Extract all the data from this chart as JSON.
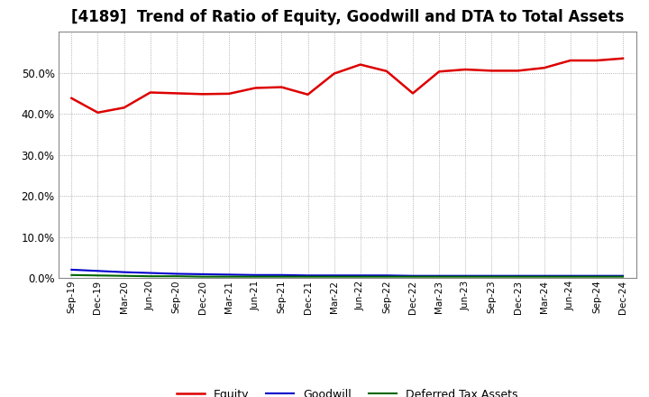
{
  "title": "[4189]  Trend of Ratio of Equity, Goodwill and DTA to Total Assets",
  "x_labels": [
    "Sep-19",
    "Dec-19",
    "Mar-20",
    "Jun-20",
    "Sep-20",
    "Dec-20",
    "Mar-21",
    "Jun-21",
    "Sep-21",
    "Dec-21",
    "Mar-22",
    "Jun-22",
    "Sep-22",
    "Dec-22",
    "Mar-23",
    "Jun-23",
    "Sep-23",
    "Dec-23",
    "Mar-24",
    "Jun-24",
    "Sep-24",
    "Dec-24"
  ],
  "equity": [
    0.438,
    0.403,
    0.415,
    0.452,
    0.45,
    0.448,
    0.449,
    0.463,
    0.465,
    0.447,
    0.498,
    0.52,
    0.504,
    0.45,
    0.503,
    0.508,
    0.505,
    0.505,
    0.512,
    0.53,
    0.53,
    0.535
  ],
  "goodwill": [
    0.02,
    0.017,
    0.014,
    0.012,
    0.01,
    0.009,
    0.008,
    0.007,
    0.007,
    0.006,
    0.006,
    0.006,
    0.006,
    0.005,
    0.005,
    0.005,
    0.005,
    0.005,
    0.005,
    0.005,
    0.005,
    0.005
  ],
  "dta": [
    0.007,
    0.006,
    0.005,
    0.004,
    0.004,
    0.003,
    0.003,
    0.003,
    0.003,
    0.003,
    0.003,
    0.003,
    0.003,
    0.003,
    0.003,
    0.003,
    0.003,
    0.003,
    0.003,
    0.003,
    0.003,
    0.003
  ],
  "equity_color": "#dd0000",
  "goodwill_color": "#0000cc",
  "dta_color": "#006600",
  "ylim": [
    0.0,
    0.6
  ],
  "yticks": [
    0.0,
    0.1,
    0.2,
    0.3,
    0.4,
    0.5
  ],
  "bg_color": "#ffffff",
  "plot_bg_color": "#ffffff",
  "grid_color": "#888888",
  "title_fontsize": 12,
  "legend_labels": [
    "Equity",
    "Goodwill",
    "Deferred Tax Assets"
  ]
}
